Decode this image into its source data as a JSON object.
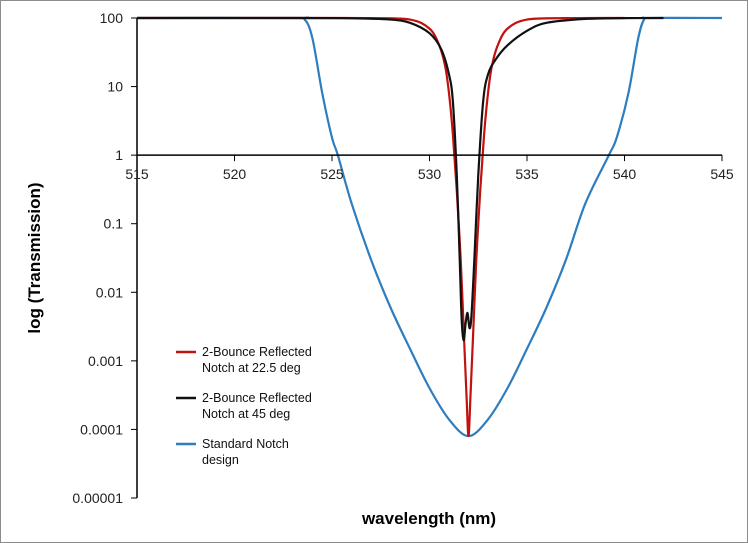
{
  "chart_data": {
    "type": "line",
    "xlabel": "wavelength (nm)",
    "ylabel": "log (Transmission)",
    "yscale": "log",
    "xlim": [
      515,
      545
    ],
    "ylim": [
      1e-05,
      100
    ],
    "x_ticks": [
      515,
      520,
      525,
      530,
      535,
      540,
      545
    ],
    "x_tick_labels": [
      "515",
      "520",
      "525",
      "530",
      "535",
      "540",
      "545"
    ],
    "y_ticks": [
      100,
      10,
      1,
      0.1,
      0.01,
      0.001,
      0.0001,
      1e-05
    ],
    "y_tick_labels": [
      "100",
      "10",
      "1",
      "0.1",
      "0.01",
      "0.001",
      "0.0001",
      "0.00001"
    ],
    "x_axis_crosses_at_y": 1,
    "grid": false,
    "legend_position": "bottom-left",
    "series": [
      {
        "name": "2-Bounce Reflected Notch at 22.5 deg",
        "legend_lines": [
          "2-Bounce Reflected",
          "Notch at 22.5 deg"
        ],
        "color": "#c0120f",
        "points": [
          [
            515,
            100
          ],
          [
            524,
            100
          ],
          [
            527,
            99.5
          ],
          [
            529,
            95
          ],
          [
            530,
            70
          ],
          [
            530.5,
            40
          ],
          [
            530.8,
            20
          ],
          [
            531,
            8
          ],
          [
            531.2,
            2
          ],
          [
            531.4,
            0.3
          ],
          [
            531.6,
            0.03
          ],
          [
            531.75,
            0.003
          ],
          [
            531.9,
            0.0003
          ],
          [
            532,
            8e-05
          ],
          [
            532.1,
            0.0003
          ],
          [
            532.25,
            0.003
          ],
          [
            532.4,
            0.03
          ],
          [
            532.6,
            0.3
          ],
          [
            532.8,
            2
          ],
          [
            533,
            8
          ],
          [
            533.2,
            20
          ],
          [
            533.5,
            40
          ],
          [
            534,
            70
          ],
          [
            535,
            95
          ],
          [
            537,
            99.5
          ],
          [
            540,
            100
          ]
        ]
      },
      {
        "name": "2-Bounce Reflected Notch at 45 deg",
        "legend_lines": [
          "2-Bounce Reflected",
          "Notch at 45 deg"
        ],
        "color": "#111111",
        "points": [
          [
            515,
            100
          ],
          [
            523,
            100
          ],
          [
            526,
            99
          ],
          [
            528,
            95
          ],
          [
            529,
            85
          ],
          [
            530,
            60
          ],
          [
            530.6,
            35
          ],
          [
            531,
            15
          ],
          [
            531.2,
            6
          ],
          [
            531.4,
            0.5
          ],
          [
            531.55,
            0.03
          ],
          [
            531.65,
            0.004
          ],
          [
            531.75,
            0.002
          ],
          [
            531.85,
            0.0035
          ],
          [
            531.95,
            0.005
          ],
          [
            532.05,
            0.003
          ],
          [
            532.15,
            0.0045
          ],
          [
            532.3,
            0.03
          ],
          [
            532.5,
            0.5
          ],
          [
            532.75,
            6
          ],
          [
            533,
            15
          ],
          [
            533.4,
            25
          ],
          [
            534,
            40
          ],
          [
            535,
            65
          ],
          [
            536,
            85
          ],
          [
            538,
            97
          ],
          [
            540,
            99.5
          ],
          [
            542,
            100
          ]
        ]
      },
      {
        "name": "Standard Notch design",
        "legend_lines": [
          "Standard Notch",
          "design"
        ],
        "color": "#2e7dbf",
        "points": [
          [
            515,
            100
          ],
          [
            523,
            100
          ],
          [
            523.6,
            95
          ],
          [
            524,
            50
          ],
          [
            524.5,
            8
          ],
          [
            525,
            1.8
          ],
          [
            525.3,
            1
          ],
          [
            526,
            0.2
          ],
          [
            527,
            0.03
          ],
          [
            528,
            0.006
          ],
          [
            529,
            0.0015
          ],
          [
            530,
            0.0004
          ],
          [
            531,
            0.00014
          ],
          [
            532,
            8e-05
          ],
          [
            533,
            0.00014
          ],
          [
            534,
            0.0004
          ],
          [
            535,
            0.0015
          ],
          [
            536,
            0.006
          ],
          [
            537,
            0.03
          ],
          [
            538,
            0.2
          ],
          [
            539.2,
            1
          ],
          [
            539.6,
            1.8
          ],
          [
            540.2,
            8
          ],
          [
            540.7,
            50
          ],
          [
            541,
            95
          ],
          [
            541.3,
            100
          ],
          [
            545,
            100
          ]
        ]
      }
    ]
  }
}
